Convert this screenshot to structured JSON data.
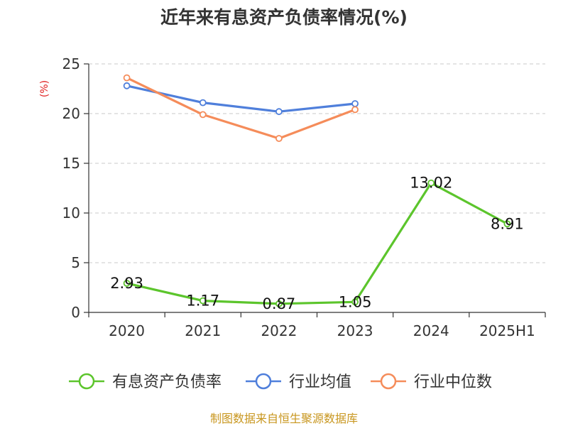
{
  "title": "近年来有息资产负债率情况(%)",
  "source": "制图数据来自恒生聚源数据库",
  "chart_data": {
    "type": "line",
    "title": "近年来有息资产负债率情况(%)",
    "ylabel": "(%)",
    "xlabel": "",
    "categories": [
      "2020",
      "2021",
      "2022",
      "2023",
      "2024",
      "2025H1"
    ],
    "ylim": [
      0,
      25
    ],
    "yticks": [
      0,
      5,
      10,
      15,
      20,
      25
    ],
    "grid": true,
    "legend_position": "bottom",
    "series": [
      {
        "name": "有息资产负债率",
        "color": "#5cc52c",
        "values": [
          2.93,
          1.17,
          0.87,
          1.05,
          13.02,
          8.91
        ],
        "labels": [
          "2.93",
          "1.17",
          "0.87",
          "1.05",
          "13.02",
          "8.91"
        ]
      },
      {
        "name": "行业均值",
        "color": "#4f7fdb",
        "values": [
          22.8,
          21.1,
          20.2,
          21.0,
          null,
          null
        ]
      },
      {
        "name": "行业中位数",
        "color": "#f58c5a",
        "values": [
          23.6,
          19.9,
          17.5,
          20.4,
          null,
          null
        ]
      }
    ]
  }
}
